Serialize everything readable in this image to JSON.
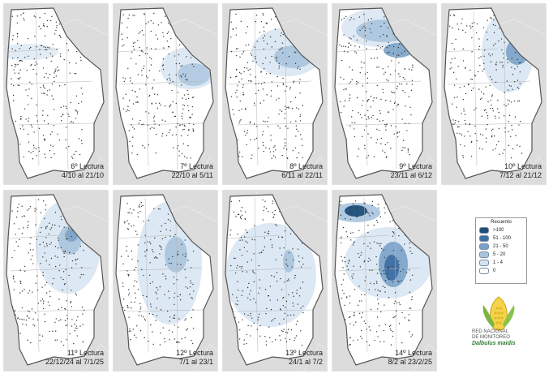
{
  "panels": [
    {
      "reading": "6º Lectura",
      "dates": "4/10 al 21/10"
    },
    {
      "reading": "7º Lectura",
      "dates": "22/10 al 5/11"
    },
    {
      "reading": "8º Lectura",
      "dates": "6/11 al 22/11"
    },
    {
      "reading": "9º Lectura",
      "dates": "23/11 al 6/12"
    },
    {
      "reading": "10º Lectura",
      "dates": "7/12 al 21/12"
    },
    {
      "reading": "11º Lectura",
      "dates": "22/12/24 al 7/1/25"
    },
    {
      "reading": "12º Lectura",
      "dates": "7/1 al 23/1"
    },
    {
      "reading": "13º Lectura",
      "dates": "24/1 al 7/2"
    },
    {
      "reading": "14º Lectura",
      "dates": "8/2 al 23/2/25"
    }
  ],
  "legend": {
    "title": "Recuento",
    "items": [
      {
        "label": ">100",
        "color": "#1f4e79"
      },
      {
        "label": "51 - 100",
        "color": "#3f6fa3"
      },
      {
        "label": "21 - 50",
        "color": "#7aa2c8"
      },
      {
        "label": "5 - 20",
        "color": "#a9c4de"
      },
      {
        "label": "1 - 4",
        "color": "#d6e4f1"
      },
      {
        "label": "0",
        "color": "#ffffff"
      }
    ]
  },
  "logo": {
    "line1": "RED NACIONAL",
    "line2": "DE MONITOREO",
    "brand": "Dalbulus maidis"
  }
}
